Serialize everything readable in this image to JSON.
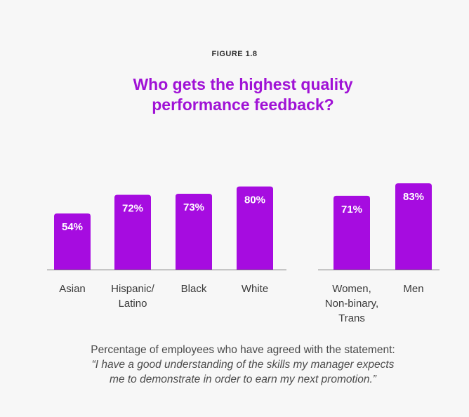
{
  "figure_label": "FIGURE 1.8",
  "chart_data": {
    "type": "bar",
    "title": "Who gets the highest quality performance feedback?",
    "title_lines": [
      "Who gets the highest quality",
      "performance feedback?"
    ],
    "categories": [
      "Asian",
      "Hispanic/ Latino",
      "Black",
      "White",
      "Women, Non-binary, Trans",
      "Men"
    ],
    "category_lines": [
      [
        "Asian"
      ],
      [
        "Hispanic/",
        "Latino"
      ],
      [
        "Black"
      ],
      [
        "White"
      ],
      [
        "Women,",
        "Non-binary,",
        "Trans"
      ],
      [
        "Men"
      ]
    ],
    "values": [
      54,
      72,
      73,
      80,
      71,
      83
    ],
    "value_labels": [
      "54%",
      "72%",
      "73%",
      "80%",
      "71%",
      "83%"
    ],
    "groups": [
      [
        "Asian",
        "Hispanic/ Latino",
        "Black",
        "White"
      ],
      [
        "Women, Non-binary, Trans",
        "Men"
      ]
    ],
    "ylim": [
      0,
      100
    ],
    "xlabel": "",
    "ylabel": "",
    "grid": false,
    "bar_color": "#a60ce0",
    "axis_color": "#7a7a7a"
  },
  "caption": {
    "line1": "Percentage of employees who have agreed with the statement:",
    "line2": "“I have a good understanding of the skills my manager expects",
    "line3": "me to demonstrate in order to earn my next promotion.”"
  }
}
